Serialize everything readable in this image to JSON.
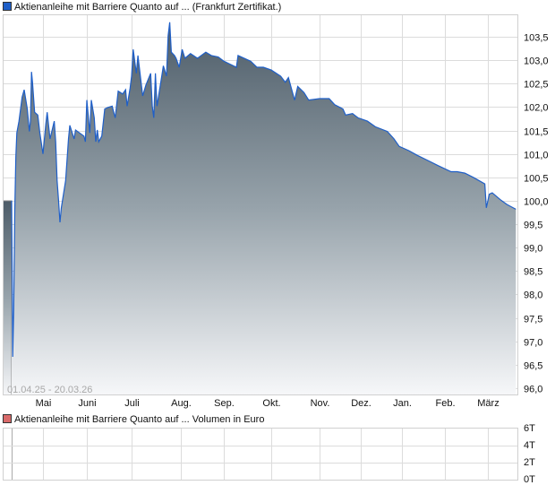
{
  "legend_price": {
    "label": "Aktienanleihe mit Barriere Quanto auf ... (Frankfurt Zertifikat.)",
    "color": "#1f5fc8"
  },
  "legend_volume": {
    "label": "Aktienanleihe mit Barriere Quanto auf ... Volumen in Euro",
    "color": "#d96a6a"
  },
  "date_range": "01.04.25 - 20.03.26",
  "chart_data": [
    {
      "type": "area",
      "title": "",
      "xlabel": "",
      "ylabel": "",
      "ylim": [
        96.0,
        103.9
      ],
      "grid": true,
      "legend_placement": "top-left",
      "x_ticks": [
        "Mai",
        "Juni",
        "Juli",
        "Aug.",
        "Sep.",
        "Okt.",
        "Nov.",
        "Dez.",
        "Jan.",
        "Feb.",
        "März"
      ],
      "y_ticks": [
        "96,0",
        "96,5",
        "97,0",
        "97,5",
        "98,0",
        "98,5",
        "99,0",
        "99,5",
        "100,0",
        "100,5",
        "101,0",
        "101,5",
        "102,0",
        "102,5",
        "103,0",
        "103,5"
      ],
      "series": [
        {
          "name": "Aktienanleihe mit Barriere Quanto auf ... (Frankfurt Zertifikat.)",
          "color": "#1f5fc8",
          "points": [
            [
              "2025-04-01",
              100.0
            ],
            [
              "2025-04-02",
              96.67
            ],
            [
              "2025-04-03",
              97.69
            ],
            [
              "2025-04-04",
              99.79
            ],
            [
              "2025-04-05",
              100.94
            ],
            [
              "2025-04-06",
              101.45
            ],
            [
              "2025-04-08",
              101.7
            ],
            [
              "2025-04-11",
              102.21
            ],
            [
              "2025-04-13",
              102.37
            ],
            [
              "2025-04-16",
              101.96
            ],
            [
              "2025-04-18",
              101.48
            ],
            [
              "2025-04-19",
              101.7
            ],
            [
              "2025-04-20",
              102.75
            ],
            [
              "2025-04-21",
              102.53
            ],
            [
              "2025-04-23",
              101.89
            ],
            [
              "2025-04-26",
              101.83
            ],
            [
              "2025-04-28",
              101.45
            ],
            [
              "2025-05-01",
              101.0
            ],
            [
              "2025-05-03",
              101.64
            ],
            [
              "2025-05-04",
              101.89
            ],
            [
              "2025-05-06",
              101.32
            ],
            [
              "2025-05-09",
              101.7
            ],
            [
              "2025-05-10",
              101.26
            ],
            [
              "2025-05-11",
              100.43
            ],
            [
              "2025-05-12",
              100.01
            ],
            [
              "2025-05-13",
              99.54
            ],
            [
              "2025-05-14",
              99.85
            ],
            [
              "2025-05-17",
              100.43
            ],
            [
              "2025-05-19",
              101.32
            ],
            [
              "2025-05-20",
              101.61
            ],
            [
              "2025-05-23",
              101.32
            ],
            [
              "2025-05-24",
              101.51
            ],
            [
              "2025-05-30",
              101.38
            ],
            [
              "2025-05-31",
              101.26
            ],
            [
              "2025-06-01",
              102.15
            ],
            [
              "2025-06-03",
              101.45
            ],
            [
              "2025-06-04",
              102.15
            ],
            [
              "2025-06-06",
              101.77
            ],
            [
              "2025-06-07",
              101.26
            ],
            [
              "2025-06-08",
              101.51
            ],
            [
              "2025-06-09",
              101.26
            ],
            [
              "2025-06-11",
              101.38
            ],
            [
              "2025-06-13",
              101.96
            ],
            [
              "2025-06-15",
              101.99
            ],
            [
              "2025-06-18",
              102.02
            ],
            [
              "2025-06-20",
              101.77
            ],
            [
              "2025-06-22",
              102.34
            ],
            [
              "2025-06-25",
              102.28
            ],
            [
              "2025-06-27",
              102.37
            ],
            [
              "2025-06-28",
              102.02
            ],
            [
              "2025-06-30",
              102.4
            ],
            [
              "2025-07-01",
              102.66
            ],
            [
              "2025-07-02",
              103.23
            ],
            [
              "2025-07-04",
              102.72
            ],
            [
              "2025-07-05",
              103.1
            ],
            [
              "2025-07-07",
              102.53
            ],
            [
              "2025-07-08",
              102.24
            ],
            [
              "2025-07-10",
              102.47
            ],
            [
              "2025-07-13",
              102.72
            ],
            [
              "2025-07-14",
              102.02
            ],
            [
              "2025-07-15",
              101.77
            ],
            [
              "2025-07-16",
              102.72
            ],
            [
              "2025-07-17",
              102.02
            ],
            [
              "2025-07-20",
              102.66
            ],
            [
              "2025-07-21",
              102.88
            ],
            [
              "2025-07-23",
              102.66
            ],
            [
              "2025-07-24",
              103.52
            ],
            [
              "2025-07-25",
              103.81
            ],
            [
              "2025-07-26",
              103.17
            ],
            [
              "2025-07-28",
              103.1
            ],
            [
              "2025-07-29",
              103.04
            ],
            [
              "2025-07-31",
              102.85
            ],
            [
              "2025-08-02",
              103.23
            ],
            [
              "2025-08-04",
              103.04
            ],
            [
              "2025-08-08",
              103.14
            ],
            [
              "2025-08-13",
              103.04
            ],
            [
              "2025-08-19",
              103.17
            ],
            [
              "2025-08-23",
              103.1
            ],
            [
              "2025-08-28",
              103.07
            ],
            [
              "2025-09-01",
              102.98
            ],
            [
              "2025-09-09",
              102.85
            ],
            [
              "2025-09-10",
              103.1
            ],
            [
              "2025-09-18",
              102.98
            ],
            [
              "2025-09-22",
              102.85
            ],
            [
              "2025-09-26",
              102.85
            ],
            [
              "2025-10-01",
              102.79
            ],
            [
              "2025-10-07",
              102.66
            ],
            [
              "2025-10-10",
              102.53
            ],
            [
              "2025-10-12",
              102.63
            ],
            [
              "2025-10-16",
              102.15
            ],
            [
              "2025-10-18",
              102.44
            ],
            [
              "2025-10-22",
              102.31
            ],
            [
              "2025-10-25",
              102.15
            ],
            [
              "2025-11-01",
              102.18
            ],
            [
              "2025-11-08",
              102.18
            ],
            [
              "2025-11-12",
              102.05
            ],
            [
              "2025-11-18",
              101.96
            ],
            [
              "2025-11-20",
              101.83
            ],
            [
              "2025-11-25",
              101.86
            ],
            [
              "2025-11-29",
              101.77
            ],
            [
              "2025-12-06",
              101.7
            ],
            [
              "2025-12-12",
              101.58
            ],
            [
              "2025-12-21",
              101.48
            ],
            [
              "2025-12-26",
              101.32
            ],
            [
              "2025-12-30",
              101.16
            ],
            [
              "2026-01-06",
              101.07
            ],
            [
              "2026-01-12",
              100.97
            ],
            [
              "2026-01-21",
              100.84
            ],
            [
              "2026-01-27",
              100.75
            ],
            [
              "2026-02-05",
              100.62
            ],
            [
              "2026-02-09",
              100.62
            ],
            [
              "2026-02-14",
              100.59
            ],
            [
              "2026-02-20",
              100.49
            ],
            [
              "2026-02-27",
              100.36
            ],
            [
              "2026-02-28",
              99.85
            ],
            [
              "2026-03-02",
              100.14
            ],
            [
              "2026-03-04",
              100.17
            ],
            [
              "2026-03-10",
              100.01
            ],
            [
              "2026-03-14",
              99.92
            ],
            [
              "2026-03-20",
              99.82
            ]
          ]
        }
      ]
    },
    {
      "type": "bar",
      "title": "",
      "ylim": [
        0,
        6
      ],
      "y_ticks": [
        "0T",
        "2T",
        "4T",
        "6T"
      ],
      "grid": true,
      "series": [
        {
          "name": "Aktienanleihe mit Barriere Quanto auf ... Volumen in Euro",
          "color": "#d96a6a",
          "values": []
        }
      ]
    }
  ]
}
